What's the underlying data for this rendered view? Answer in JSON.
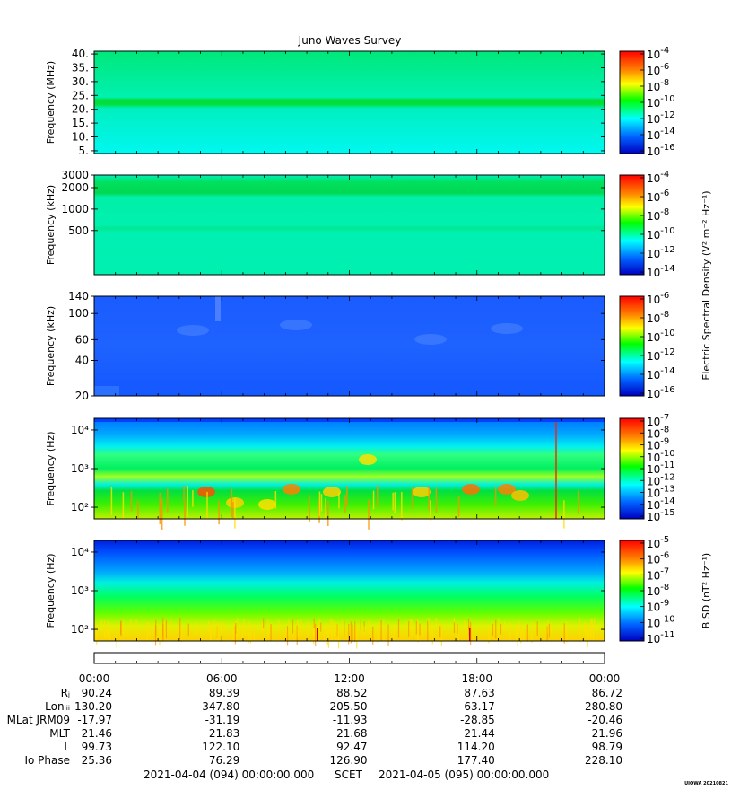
{
  "title": "Juno Waves Survey",
  "footer": "UIOWA 20210821",
  "colors": {
    "cyan": "#00f0ff",
    "green": "#00e000",
    "blue": "#2060ff",
    "yellow": "#ffe000",
    "red": "#ff2000"
  },
  "chart_data": [
    {
      "type": "heatmap",
      "name": "high-frequency-panel",
      "ylabel": "Frequency (MHz)",
      "scale": "linear",
      "ylim": [
        4,
        41
      ],
      "yticks": [
        "5.",
        "10.",
        "15.",
        "20.",
        "25.",
        "30.",
        "35.",
        "40."
      ],
      "ytick_values": [
        5,
        10,
        15,
        20,
        25,
        30,
        35,
        40
      ],
      "colorbar_ticks": [
        "-4",
        "-6",
        "-8",
        "-10",
        "-12",
        "-14",
        "-16"
      ],
      "colorbar_label": ""
    },
    {
      "type": "heatmap",
      "name": "mid-frequency-panel",
      "ylabel": "Frequency (kHz)",
      "scale": "log",
      "ylim": [
        120,
        3000
      ],
      "yticks": [
        "3000",
        "2000",
        "1000",
        "500"
      ],
      "ytick_values": [
        3000,
        2000,
        1000,
        500
      ],
      "colorbar_ticks": [
        "-4",
        "-6",
        "-8",
        "-10",
        "-12",
        "-14"
      ],
      "colorbar_label": "Electric Spectral Density (V² m⁻² Hz⁻¹)"
    },
    {
      "type": "heatmap",
      "name": "low-frequency-panel",
      "ylabel": "Frequency (kHz)",
      "scale": "log",
      "ylim": [
        20,
        140
      ],
      "yticks": [
        "140",
        "100",
        "60",
        "40",
        "20"
      ],
      "ytick_values": [
        140,
        100,
        60,
        40,
        20
      ],
      "colorbar_ticks": [
        "-6",
        "-8",
        "-10",
        "-12",
        "-14",
        "-16"
      ],
      "colorbar_label": ""
    },
    {
      "type": "heatmap",
      "name": "electric-hz-panel",
      "ylabel": "Frequency (Hz)",
      "scale": "log",
      "ylim": [
        50,
        20000
      ],
      "yticks": [
        "10⁴",
        "10³",
        "10²"
      ],
      "ytick_values": [
        10000,
        1000,
        100
      ],
      "colorbar_ticks": [
        "-7",
        "-8",
        "-9",
        "-10",
        "-11",
        "-12",
        "-13",
        "-14",
        "-15"
      ],
      "colorbar_label": ""
    },
    {
      "type": "heatmap",
      "name": "magnetic-panel",
      "ylabel": "Frequency (Hz)",
      "scale": "log",
      "ylim": [
        50,
        20000
      ],
      "yticks": [
        "10⁴",
        "10³",
        "10²"
      ],
      "ytick_values": [
        10000,
        1000,
        100
      ],
      "colorbar_ticks": [
        "-5",
        "-6",
        "-7",
        "-8",
        "-9",
        "-10",
        "-11"
      ],
      "colorbar_label": "B SD (nT² Hz⁻¹)"
    }
  ],
  "ephemeris": {
    "time_ticks": [
      "00:00",
      "06:00",
      "12:00",
      "18:00",
      "00:00"
    ],
    "rows": [
      {
        "label": "Rⱼ",
        "values": [
          "90.24",
          "89.39",
          "88.52",
          "87.63",
          "86.72"
        ]
      },
      {
        "label": "Lonᵢᵢᵢ",
        "values": [
          "130.20",
          "347.80",
          "205.50",
          "63.17",
          "280.80"
        ]
      },
      {
        "label": "MLat JRM09",
        "values": [
          "-17.97",
          "-31.19",
          "-11.93",
          "-28.85",
          "-20.46"
        ]
      },
      {
        "label": "MLT",
        "values": [
          "21.46",
          "21.83",
          "21.68",
          "21.44",
          "21.96"
        ]
      },
      {
        "label": "L",
        "values": [
          "99.73",
          "122.10",
          "92.47",
          "114.20",
          "98.79"
        ]
      },
      {
        "label": "Io Phase",
        "values": [
          "25.36",
          "76.29",
          "126.90",
          "177.40",
          "228.10"
        ]
      }
    ],
    "start_label": "2021-04-04 (094) 00:00:00.000",
    "scet_label": "SCET",
    "end_label": "2021-04-05 (095) 00:00:00.000"
  }
}
